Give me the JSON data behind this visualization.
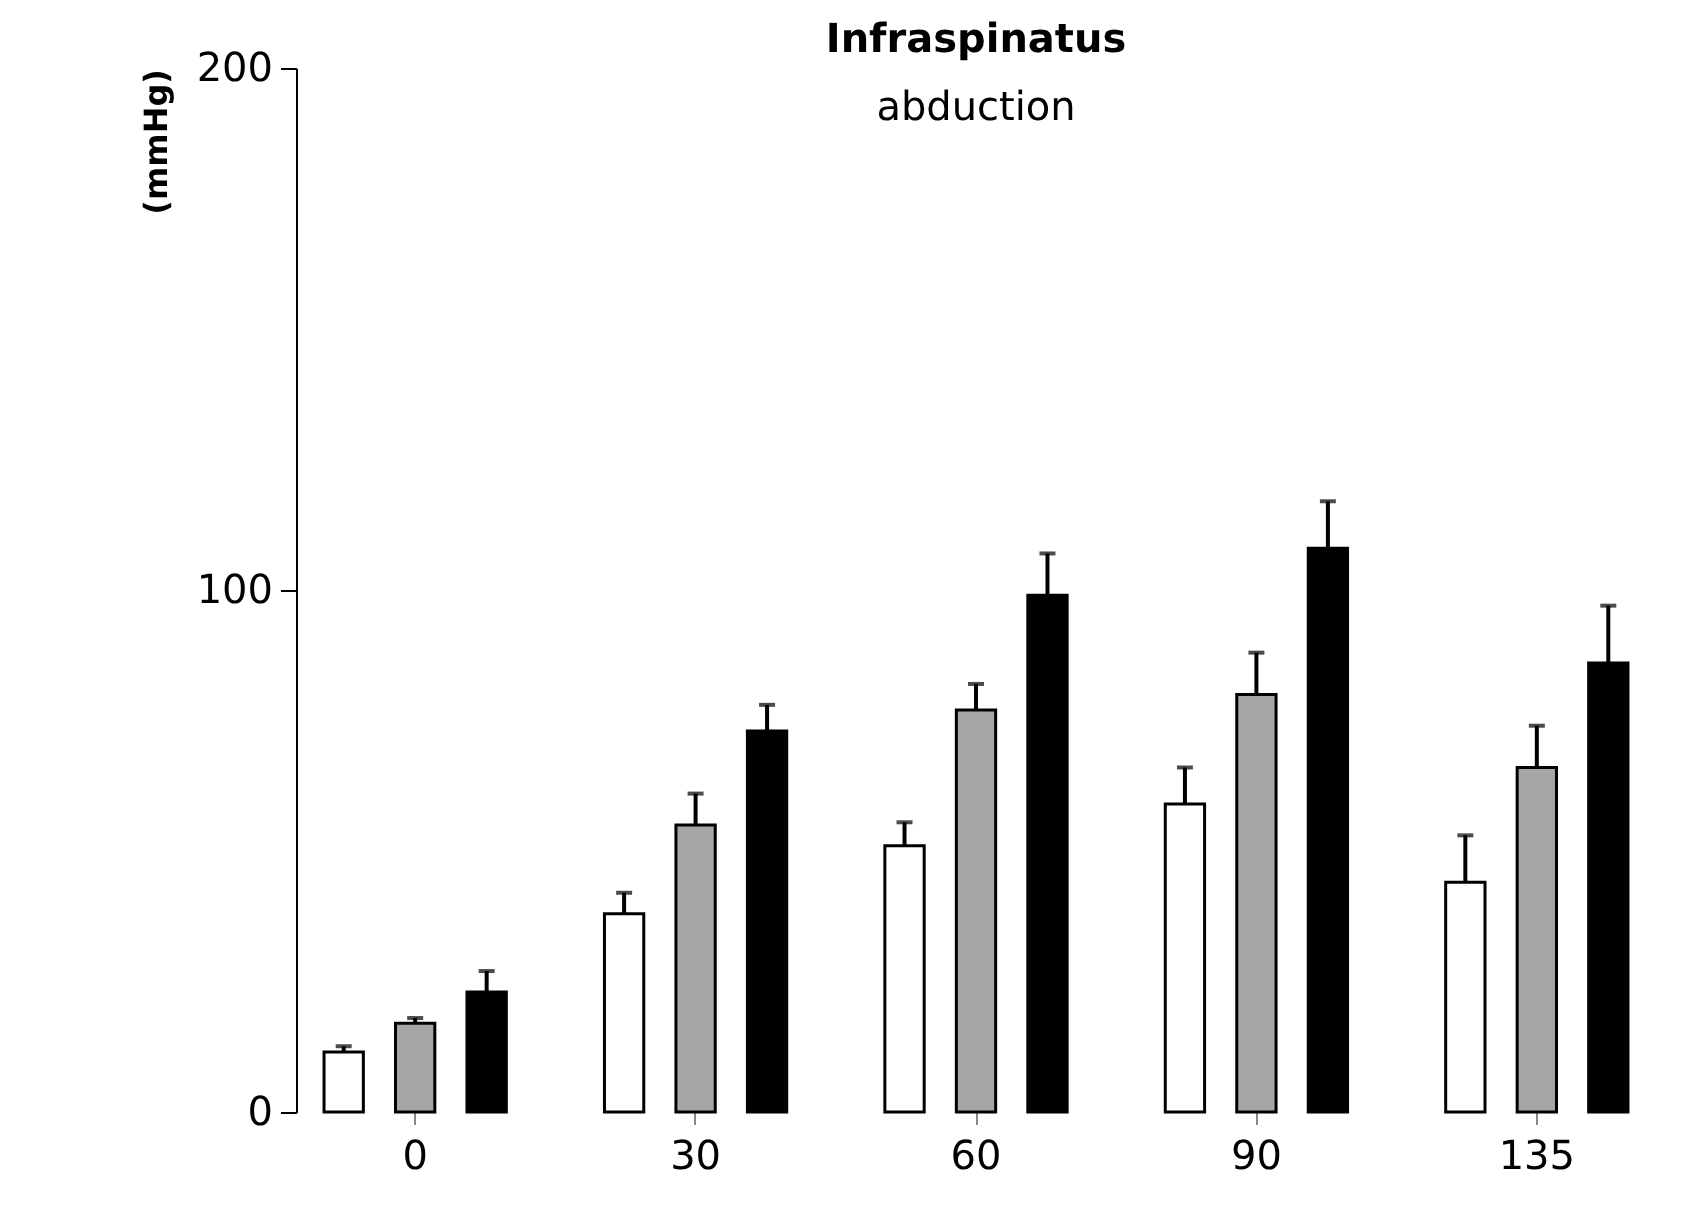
{
  "chart_data": {
    "type": "bar",
    "title": "Infraspinatus",
    "subtitle": "abduction",
    "ylabel": "(mmHg)",
    "categories": [
      "0",
      "30",
      "60",
      "90",
      "135"
    ],
    "ylim": [
      0,
      200
    ],
    "yticks": [
      0,
      100,
      200
    ],
    "series": [
      {
        "color": "#ffffff",
        "values": [
          11.5,
          38,
          51,
          59,
          44
        ],
        "errors": [
          [
            11.5,
            12.6
          ],
          [
            38,
            42
          ],
          [
            51,
            55.5
          ],
          [
            59,
            66
          ],
          [
            44,
            53
          ]
        ]
      },
      {
        "color": "#a6a6a6",
        "values": [
          17,
          55,
          77,
          80,
          66
        ],
        "errors": [
          [
            17,
            18
          ],
          [
            55,
            61
          ],
          [
            77,
            82
          ],
          [
            80,
            88
          ],
          [
            66,
            74
          ]
        ]
      },
      {
        "color": "#000000",
        "values": [
          23,
          73,
          99,
          108,
          86
        ],
        "errors": [
          [
            23,
            27
          ],
          [
            73,
            78
          ],
          [
            99,
            107
          ],
          [
            108,
            117
          ],
          [
            86,
            97
          ]
        ]
      }
    ]
  }
}
